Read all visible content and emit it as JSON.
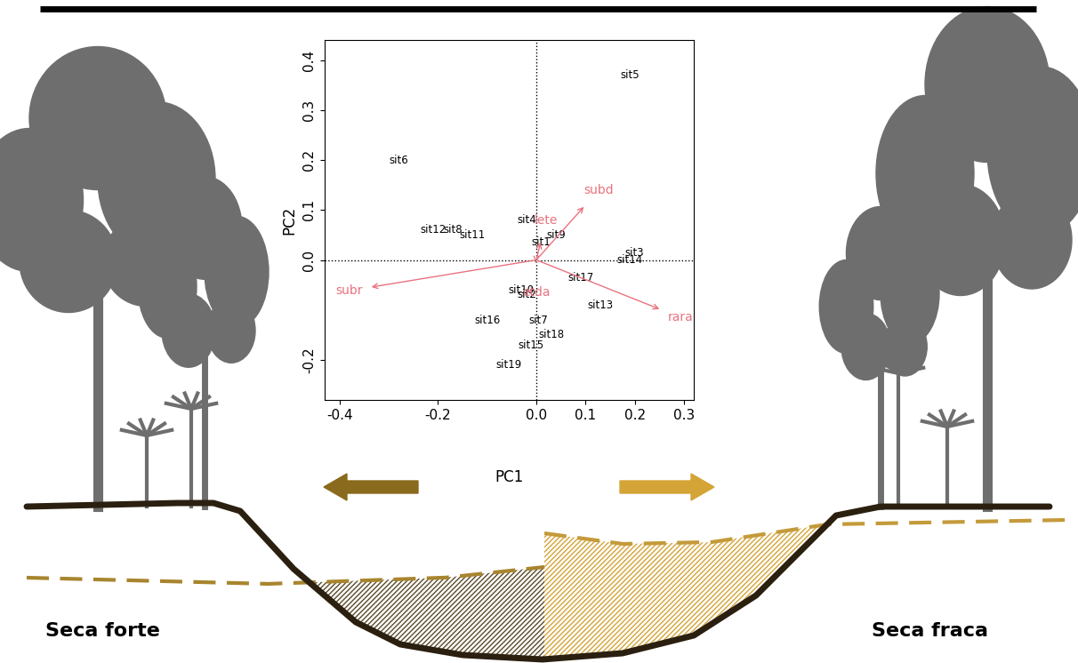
{
  "chart_data": {
    "type": "biplot",
    "x_label": "PC1",
    "y_label": "PC2",
    "xlim": [
      -0.43,
      0.32
    ],
    "ylim": [
      -0.28,
      0.44
    ],
    "xticks": [
      -0.4,
      -0.2,
      0.0,
      0.1,
      0.2,
      0.3
    ],
    "yticks": [
      -0.2,
      0.0,
      0.1,
      0.2,
      0.3,
      0.4
    ],
    "reference_lines": {
      "x": 0.0,
      "y": 0.0
    },
    "points": {
      "color": "#000000",
      "labels": [
        "sit1",
        "sit2",
        "sit3",
        "sit4",
        "sit5",
        "sit6",
        "sit7",
        "sit8",
        "sit9",
        "sit10",
        "sit11",
        "sit12",
        "sit13",
        "sit14",
        "sit15",
        "sit16",
        "sit17",
        "sit18",
        "sit19"
      ],
      "x": [
        0.01,
        -0.02,
        0.2,
        -0.02,
        0.19,
        -0.28,
        0.005,
        -0.17,
        0.04,
        -0.03,
        -0.13,
        -0.21,
        0.13,
        0.19,
        -0.01,
        -0.1,
        0.09,
        0.03,
        -0.055
      ],
      "y": [
        0.035,
        -0.07,
        0.015,
        0.08,
        0.37,
        0.2,
        -0.12,
        0.06,
        0.05,
        -0.06,
        0.05,
        0.06,
        -0.09,
        0.0,
        -0.17,
        -0.12,
        -0.035,
        -0.15,
        -0.21
      ]
    },
    "loadings": {
      "color": "#e8737f",
      "labels": [
        "subd",
        "subr",
        "rara",
        "etda",
        "lete"
      ],
      "x": [
        0.1,
        -0.34,
        0.255,
        0.0,
        0.01
      ],
      "y": [
        0.11,
        -0.055,
        -0.1,
        -0.01,
        0.04
      ]
    },
    "annotations": [
      "Seca forte",
      "Seca fraca"
    ]
  }
}
